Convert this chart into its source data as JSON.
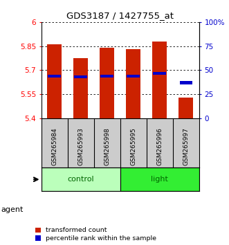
{
  "title": "GDS3187 / 1427755_at",
  "samples": [
    "GSM265984",
    "GSM265993",
    "GSM265998",
    "GSM265995",
    "GSM265996",
    "GSM265997"
  ],
  "groups": [
    "control",
    "control",
    "control",
    "light",
    "light",
    "light"
  ],
  "bar_tops": [
    5.862,
    5.773,
    5.838,
    5.832,
    5.878,
    5.528
  ],
  "bar_bottom": 5.4,
  "percentile_values": [
    5.664,
    5.657,
    5.662,
    5.664,
    5.68,
    5.622
  ],
  "ylim_left": [
    5.4,
    6.0
  ],
  "ylim_right": [
    0,
    100
  ],
  "yticks_left": [
    5.4,
    5.55,
    5.7,
    5.85,
    6.0
  ],
  "ytick_labels_left": [
    "5.4",
    "5.55",
    "5.7",
    "5.85",
    "6"
  ],
  "yticks_right": [
    0,
    25,
    50,
    75,
    100
  ],
  "ytick_labels_right": [
    "0",
    "25",
    "50",
    "75",
    "100%"
  ],
  "bar_color": "#cc2200",
  "blue_color": "#0000cc",
  "control_color": "#bbffbb",
  "light_color": "#33ee33",
  "sample_box_color": "#cccccc",
  "group_text_color": "#006600",
  "bar_width": 0.55,
  "legend_bar_label": "transformed count",
  "legend_dot_label": "percentile rank within the sample"
}
